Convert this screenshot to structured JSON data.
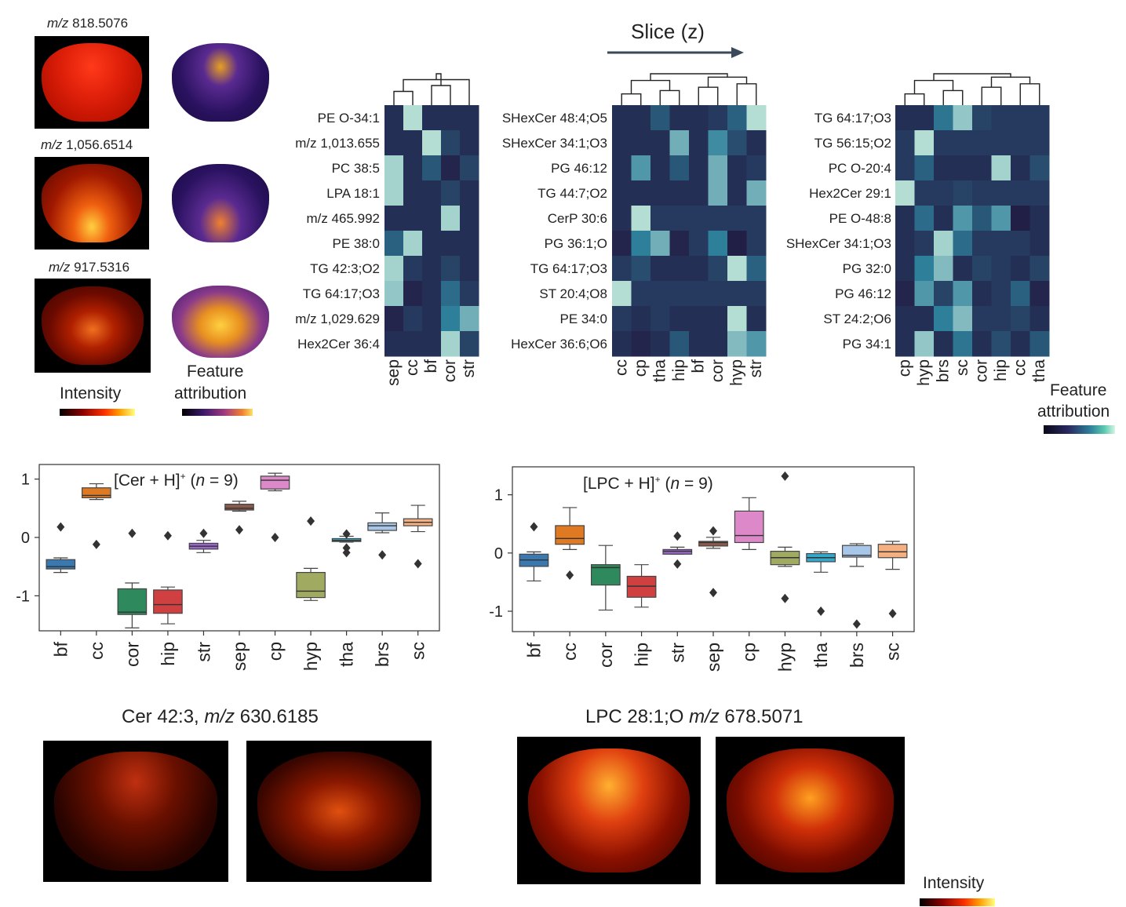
{
  "left_panel": {
    "rows": [
      {
        "label_prefix": "m/z",
        "label_value": "818.5076"
      },
      {
        "label_prefix": "m/z",
        "label_value": "1,056.6514"
      },
      {
        "label_prefix": "m/z",
        "label_value": "917.5316"
      }
    ],
    "intensity_label": "Intensity",
    "attribution_label_1": "Feature",
    "attribution_label_2": "attribution"
  },
  "slice_label": "Slice (z)",
  "heatmap_colorbar_label_1": "Feature",
  "heatmap_colorbar_label_2": "attribution",
  "colors": {
    "heat_low": "#221b44",
    "heat_mid": "#2e7f9a",
    "heat_high": "#d6f5e3"
  },
  "chart_data": [
    {
      "type": "heatmap",
      "rows": [
        "PE O-34:1",
        "m/z 1,013.655",
        "PC 38:5",
        "LPA 18:1",
        "m/z 465.992",
        "PE 38:0",
        "TG 42:3;O2",
        "TG 64:17;O3",
        "m/z 1,029.629",
        "Hex2Cer 36:4"
      ],
      "columns": [
        "sep",
        "cc",
        "bf",
        "cor",
        "str"
      ],
      "values": [
        [
          0.1,
          0.9,
          0.1,
          0.1,
          0.1
        ],
        [
          0.1,
          0.1,
          0.9,
          0.2,
          0.1
        ],
        [
          0.85,
          0.1,
          0.3,
          0.05,
          0.2
        ],
        [
          0.85,
          0.1,
          0.1,
          0.2,
          0.1
        ],
        [
          0.1,
          0.1,
          0.1,
          0.85,
          0.1
        ],
        [
          0.35,
          0.85,
          0.1,
          0.1,
          0.1
        ],
        [
          0.85,
          0.15,
          0.1,
          0.2,
          0.1
        ],
        [
          0.8,
          0.05,
          0.1,
          0.4,
          0.15
        ],
        [
          0.05,
          0.15,
          0.1,
          0.5,
          0.7
        ],
        [
          0.1,
          0.1,
          0.1,
          0.85,
          0.2
        ]
      ]
    },
    {
      "type": "heatmap",
      "rows": [
        "SHexCer 48:4;O5",
        "SHexCer 34:1;O3",
        "PG 46:12",
        "TG 44:7;O2",
        "CerP 30:6",
        "PG 36:1;O",
        "TG 64:17;O3",
        "ST 20:4;O8",
        "PE 34:0",
        "HexCer 36:6;O6"
      ],
      "columns": [
        "cc",
        "cp",
        "tha",
        "hip",
        "bf",
        "cor",
        "hyp",
        "str"
      ],
      "values": [
        [
          0.1,
          0.1,
          0.3,
          0.1,
          0.1,
          0.15,
          0.35,
          0.9
        ],
        [
          0.1,
          0.1,
          0.1,
          0.7,
          0.1,
          0.55,
          0.25,
          0.1
        ],
        [
          0.1,
          0.6,
          0.1,
          0.3,
          0.1,
          0.7,
          0.1,
          0.15
        ],
        [
          0.1,
          0.1,
          0.1,
          0.1,
          0.1,
          0.7,
          0.1,
          0.7
        ],
        [
          0.1,
          0.9,
          0.15,
          0.15,
          0.15,
          0.15,
          0.15,
          0.15
        ],
        [
          0.05,
          0.5,
          0.7,
          0.05,
          0.15,
          0.5,
          0.02,
          0.15
        ],
        [
          0.15,
          0.25,
          0.1,
          0.1,
          0.1,
          0.2,
          0.9,
          0.35
        ],
        [
          0.9,
          0.15,
          0.15,
          0.15,
          0.15,
          0.15,
          0.15,
          0.15
        ],
        [
          0.15,
          0.1,
          0.15,
          0.1,
          0.1,
          0.1,
          0.9,
          0.1
        ],
        [
          0.1,
          0.05,
          0.1,
          0.3,
          0.1,
          0.1,
          0.75,
          0.6
        ]
      ]
    },
    {
      "type": "heatmap",
      "rows": [
        "TG 64:17;O3",
        "TG 56:15;O2",
        "PC O-20:4",
        "Hex2Cer 29:1",
        "PE O-48:8",
        "SHexCer 34:1;O3",
        "PG 32:0",
        "PG 46:12",
        "ST 24:2;O6",
        "PG 34:1"
      ],
      "columns": [
        "cp",
        "hyp",
        "brs",
        "sc",
        "cor",
        "hip",
        "cc",
        "tha"
      ],
      "values": [
        [
          0.1,
          0.1,
          0.45,
          0.8,
          0.2,
          0.15,
          0.15,
          0.15
        ],
        [
          0.15,
          0.9,
          0.15,
          0.15,
          0.15,
          0.15,
          0.15,
          0.15
        ],
        [
          0.15,
          0.35,
          0.1,
          0.1,
          0.1,
          0.85,
          0.1,
          0.25
        ],
        [
          0.9,
          0.15,
          0.15,
          0.2,
          0.15,
          0.15,
          0.15,
          0.15
        ],
        [
          0.1,
          0.4,
          0.1,
          0.6,
          0.3,
          0.6,
          0.02,
          0.1
        ],
        [
          0.1,
          0.15,
          0.85,
          0.4,
          0.15,
          0.15,
          0.15,
          0.1
        ],
        [
          0.1,
          0.5,
          0.75,
          0.1,
          0.2,
          0.15,
          0.1,
          0.2
        ],
        [
          0.05,
          0.6,
          0.2,
          0.6,
          0.1,
          0.15,
          0.35,
          0.05
        ],
        [
          0.1,
          0.1,
          0.5,
          0.75,
          0.15,
          0.15,
          0.2,
          0.1
        ],
        [
          0.1,
          0.8,
          0.1,
          0.45,
          0.1,
          0.25,
          0.1,
          0.3
        ]
      ]
    },
    {
      "type": "box",
      "title_main": "[Cer + H]",
      "title_sup": "+",
      "title_n_pre": "(",
      "title_n_var": "n",
      "title_n_post": "= 9)",
      "categories": [
        "bf",
        "cc",
        "cor",
        "hip",
        "str",
        "sep",
        "cp",
        "hyp",
        "tha",
        "brs",
        "sc"
      ],
      "colors": [
        "#3a78b0",
        "#e07a22",
        "#2e8a5c",
        "#d04040",
        "#9966cc",
        "#8b5a4a",
        "#dd88c8",
        "#a0aa60",
        "#33aacc",
        "#a8c6e8",
        "#f4b080"
      ],
      "boxes": [
        {
          "min": -0.6,
          "q1": -0.54,
          "median": -0.5,
          "q3": -0.38,
          "max": -0.35,
          "outliers": [
            0.18
          ]
        },
        {
          "min": 0.65,
          "q1": 0.68,
          "median": 0.72,
          "q3": 0.85,
          "max": 0.92,
          "outliers": [
            -0.12
          ]
        },
        {
          "min": -1.55,
          "q1": -1.32,
          "median": -1.28,
          "q3": -0.88,
          "max": -0.78,
          "outliers": [
            0.07
          ]
        },
        {
          "min": -1.48,
          "q1": -1.3,
          "median": -1.15,
          "q3": -0.9,
          "max": -0.85,
          "outliers": [
            0.03
          ]
        },
        {
          "min": -0.26,
          "q1": -0.2,
          "median": -0.15,
          "q3": -0.1,
          "max": -0.05,
          "outliers": [
            0.07
          ]
        },
        {
          "min": 0.45,
          "q1": 0.47,
          "median": 0.5,
          "q3": 0.57,
          "max": 0.62,
          "outliers": [
            0.13
          ]
        },
        {
          "min": 0.8,
          "q1": 0.83,
          "median": 0.98,
          "q3": 1.05,
          "max": 1.1,
          "outliers": [
            0.0
          ]
        },
        {
          "min": -1.08,
          "q1": -1.03,
          "median": -0.92,
          "q3": -0.6,
          "max": -0.53,
          "outliers": [
            0.28
          ]
        },
        {
          "min": -0.08,
          "q1": -0.07,
          "median": -0.05,
          "q3": -0.02,
          "max": 0.02,
          "outliers": [
            0.06,
            -0.18,
            -0.26
          ]
        },
        {
          "min": 0.08,
          "q1": 0.12,
          "median": 0.2,
          "q3": 0.25,
          "max": 0.42,
          "outliers": [
            -0.3
          ]
        },
        {
          "min": 0.1,
          "q1": 0.2,
          "median": 0.26,
          "q3": 0.32,
          "max": 0.55,
          "outliers": [
            -0.45
          ]
        }
      ],
      "yticks": [
        1,
        0,
        -1
      ],
      "ylim": [
        -1.6,
        1.25
      ],
      "xlabel": "",
      "ylabel": ""
    },
    {
      "type": "box",
      "title_main": "[LPC + H]",
      "title_sup": "+",
      "title_n_pre": "(",
      "title_n_var": "n",
      "title_n_post": "= 9)",
      "categories": [
        "bf",
        "cc",
        "cor",
        "hip",
        "str",
        "sep",
        "cp",
        "hyp",
        "tha",
        "brs",
        "sc"
      ],
      "colors": [
        "#3a78b0",
        "#e07a22",
        "#2e8a5c",
        "#d04040",
        "#9966cc",
        "#8b5a4a",
        "#dd88c8",
        "#a0aa60",
        "#33aacc",
        "#a8c6e8",
        "#f4b080"
      ],
      "boxes": [
        {
          "min": -0.48,
          "q1": -0.23,
          "median": -0.12,
          "q3": -0.02,
          "max": 0.02,
          "outliers": [
            0.45
          ]
        },
        {
          "min": 0.06,
          "q1": 0.15,
          "median": 0.25,
          "q3": 0.47,
          "max": 0.78,
          "outliers": [
            -0.38
          ]
        },
        {
          "min": -0.98,
          "q1": -0.55,
          "median": -0.25,
          "q3": -0.2,
          "max": 0.13,
          "outliers": []
        },
        {
          "min": -0.93,
          "q1": -0.76,
          "median": -0.57,
          "q3": -0.4,
          "max": -0.2,
          "outliers": []
        },
        {
          "min": -0.02,
          "q1": -0.02,
          "median": 0.03,
          "q3": 0.06,
          "max": 0.1,
          "outliers": [
            0.29,
            -0.19
          ]
        },
        {
          "min": 0.08,
          "q1": 0.12,
          "median": 0.18,
          "q3": 0.2,
          "max": 0.27,
          "outliers": [
            0.38,
            -0.68
          ]
        },
        {
          "min": 0.06,
          "q1": 0.18,
          "median": 0.3,
          "q3": 0.72,
          "max": 0.95,
          "outliers": []
        },
        {
          "min": -0.23,
          "q1": -0.2,
          "median": -0.08,
          "q3": 0.03,
          "max": 0.1,
          "outliers": [
            1.32,
            -0.78
          ]
        },
        {
          "min": -0.33,
          "q1": -0.15,
          "median": -0.08,
          "q3": -0.01,
          "max": 0.02,
          "outliers": [
            -1.0
          ]
        },
        {
          "min": -0.23,
          "q1": -0.07,
          "median": -0.04,
          "q3": 0.13,
          "max": 0.16,
          "outliers": [
            -1.22
          ]
        },
        {
          "min": -0.28,
          "q1": -0.08,
          "median": 0.02,
          "q3": 0.15,
          "max": 0.2,
          "outliers": [
            -1.04
          ]
        }
      ],
      "yticks": [
        1,
        0,
        -1
      ],
      "ylim": [
        -1.35,
        1.48
      ],
      "xlabel": "",
      "ylabel": ""
    }
  ],
  "bottom_left_title_prefix": "Cer 42:3,",
  "bottom_left_title_mz": "m/z",
  "bottom_left_title_value": "630.6185",
  "bottom_right_title_prefix": "LPC 28:1;O",
  "bottom_right_title_mz": "m/z",
  "bottom_right_title_value": "678.5071",
  "bottom_intensity_label": "Intensity"
}
